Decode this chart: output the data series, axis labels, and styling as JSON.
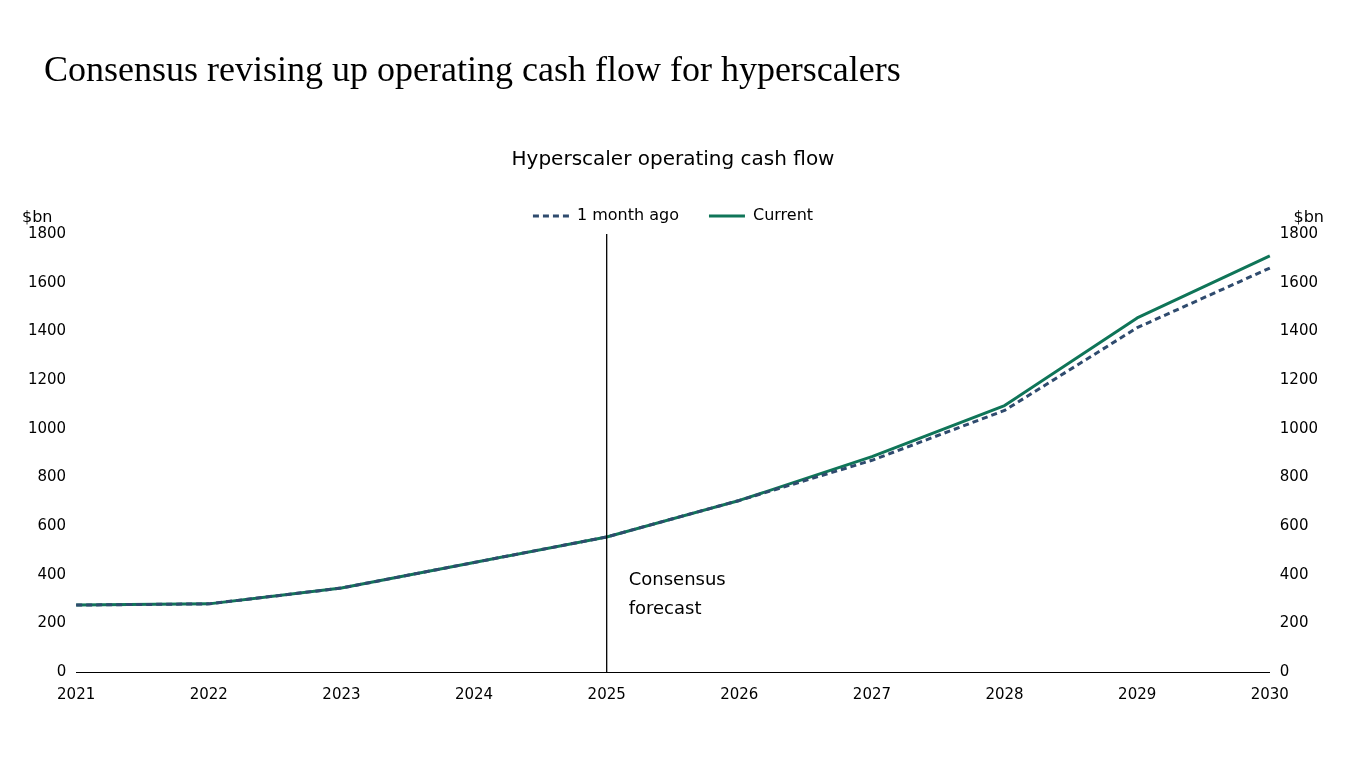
{
  "chart_data": {
    "type": "line",
    "title": "Consensus revising up operating cash flow for hyperscalers",
    "subtitle": "Hyperscaler operating cash flow",
    "ylabel": "$bn",
    "y2label": "$bn",
    "categories": [
      "2021",
      "2022",
      "2023",
      "2024",
      "2025",
      "2026",
      "2027",
      "2028",
      "2029",
      "2030"
    ],
    "series": [
      {
        "name": "1 month ago",
        "color": "#2f4b6e",
        "line_style": "dashed",
        "values": [
          275,
          280,
          345,
          450,
          555,
          705,
          870,
          1075,
          1415,
          1660
        ]
      },
      {
        "name": "Current",
        "color": "#0f7558",
        "line_style": "solid",
        "values": [
          275,
          280,
          345,
          450,
          555,
          705,
          885,
          1095,
          1455,
          1710
        ]
      }
    ],
    "ylim": [
      0,
      1800
    ],
    "yticks": [
      0,
      200,
      400,
      600,
      800,
      1000,
      1200,
      1400,
      1600,
      1800
    ],
    "y2lim": [
      0,
      1800
    ],
    "y2ticks": [
      0,
      200,
      400,
      600,
      800,
      1000,
      1200,
      1400,
      1600,
      1800
    ],
    "ref_lines": [
      {
        "axis": "x",
        "value": "2025",
        "label": "Consensus forecast",
        "color": "#000000"
      }
    ],
    "grid": false,
    "legend": "top",
    "marker": "none"
  }
}
